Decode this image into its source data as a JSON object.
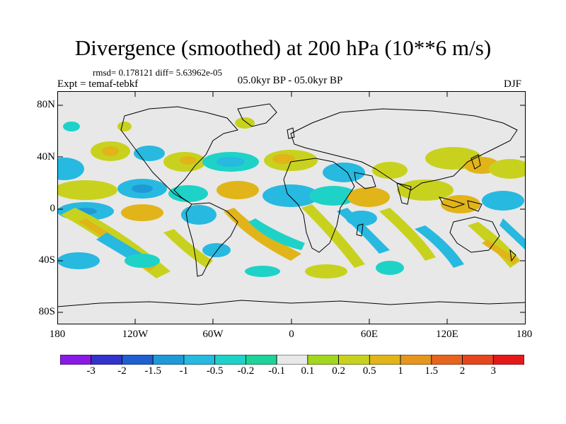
{
  "title": "Divergence (smoothed) at 200 hPa (10**6 m/s)",
  "stats": "rmsd= 0.178121 diff= 5.63962e-05",
  "experiment": "Expt = temaf-tebkf",
  "period": "05.0kyr BP - 05.0kyr BP",
  "season": "DJF",
  "y_axis_labels": [
    "80N",
    "40N",
    "0",
    "40S",
    "80S"
  ],
  "x_axis_labels": [
    "180",
    "120W",
    "60W",
    "0",
    "60E",
    "120E",
    "180"
  ],
  "colorbar": {
    "labels": [
      "-3",
      "-2",
      "-1.5",
      "-1",
      "-0.5",
      "-0.2",
      "-0.1",
      "0.1",
      "0.2",
      "0.5",
      "1",
      "1.5",
      "2",
      "3"
    ],
    "colors": [
      "#8a19e6",
      "#3333cc",
      "#1f5fd1",
      "#1e9ad8",
      "#27b9e0",
      "#1ed2c8",
      "#1ed39a",
      "#e8e8e8",
      "#a2d71e",
      "#c8d21e",
      "#e1b419",
      "#e6961e",
      "#e6641e",
      "#e6461e",
      "#e61919"
    ]
  },
  "map_colors": {
    "background": "#e8e8e8",
    "neg_weak": "#1ed2c8",
    "neg_mid": "#27b9e0",
    "neg_strong": "#1e9ad8",
    "pos_weak": "#a2d71e",
    "pos_mid": "#c8d21e",
    "pos_strong": "#e1b419",
    "coast": "#000000"
  }
}
